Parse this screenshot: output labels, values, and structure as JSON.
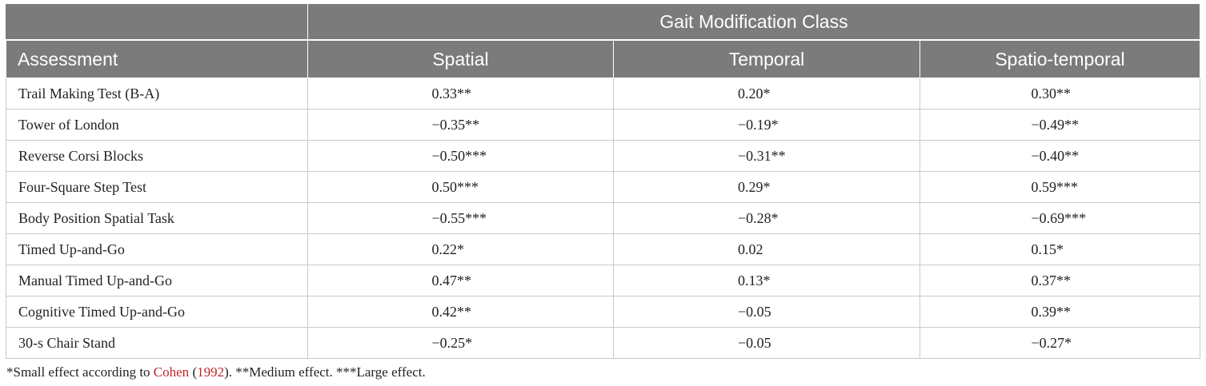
{
  "header": {
    "group_label": "Gait Modification Class",
    "columns": [
      "Assessment",
      "Spatial",
      "Temporal",
      "Spatio-temporal"
    ]
  },
  "rows": [
    {
      "assessment": "Trail Making Test (B-A)",
      "spatial": "0.33**",
      "temporal": "0.20*",
      "spatiotemporal": "0.30**"
    },
    {
      "assessment": "Tower of London",
      "spatial": "−0.35**",
      "temporal": "−0.19*",
      "spatiotemporal": "−0.49**"
    },
    {
      "assessment": "Reverse Corsi Blocks",
      "spatial": "−0.50***",
      "temporal": "−0.31**",
      "spatiotemporal": "−0.40**"
    },
    {
      "assessment": "Four-Square Step Test",
      "spatial": "0.50***",
      "temporal": "0.29*",
      "spatiotemporal": "0.59***"
    },
    {
      "assessment": "Body Position Spatial Task",
      "spatial": "−0.55***",
      "temporal": "−0.28*",
      "spatiotemporal": "−0.69***"
    },
    {
      "assessment": "Timed Up-and-Go",
      "spatial": "0.22*",
      "temporal": "0.02",
      "spatiotemporal": "0.15*"
    },
    {
      "assessment": "Manual Timed Up-and-Go",
      "spatial": "0.47**",
      "temporal": "0.13*",
      "spatiotemporal": "0.37**"
    },
    {
      "assessment": "Cognitive Timed Up-and-Go",
      "spatial": "0.42**",
      "temporal": "−0.05",
      "spatiotemporal": "0.39**"
    },
    {
      "assessment": "30-s Chair Stand",
      "spatial": "−0.25*",
      "temporal": "−0.05",
      "spatiotemporal": "−0.27*"
    }
  ],
  "footnote": {
    "prefix": "*Small effect according to ",
    "cite_author": "Cohen",
    "cite_open": " (",
    "cite_year": "1992",
    "suffix": "). **Medium effect. ***Large effect."
  },
  "colors": {
    "header_bg": "#7b7b7b",
    "citation_link": "#c0262d"
  }
}
